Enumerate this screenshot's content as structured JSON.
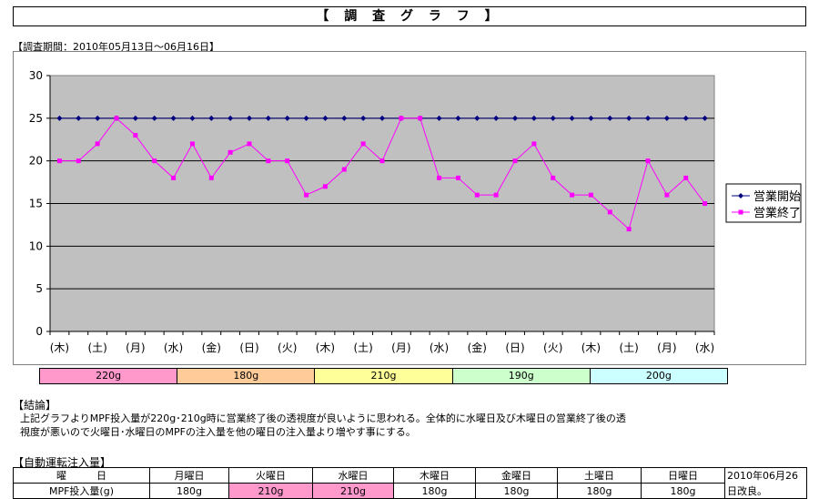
{
  "title": "【 調 査 グ ラ フ 】",
  "period": "【調査期間：2010年05月13日～06月16日】",
  "chart_data": {
    "type": "line",
    "categories": [
      "(木)",
      "(金)",
      "(土)",
      "(日)",
      "(月)",
      "(火)",
      "(水)",
      "(木)",
      "(金)",
      "(土)",
      "(日)",
      "(月)",
      "(火)",
      "(水)",
      "(木)",
      "(金)",
      "(土)",
      "(日)",
      "(月)",
      "(火)",
      "(水)",
      "(木)",
      "(金)",
      "(土)",
      "(日)",
      "(月)",
      "(火)",
      "(水)",
      "(木)",
      "(金)",
      "(土)",
      "(日)",
      "(月)",
      "(火)",
      "(水)"
    ],
    "x_tick_labels": [
      "(木)",
      "(土)",
      "(月)",
      "(水)",
      "(金)",
      "(日)",
      "(火)",
      "(木)",
      "(土)",
      "(月)",
      "(水)",
      "(金)",
      "(日)",
      "(火)",
      "(木)",
      "(土)",
      "(月)",
      "(水)"
    ],
    "series": [
      {
        "name": "営業開始",
        "color": "#000080",
        "marker": "diamond",
        "values": [
          25,
          25,
          25,
          25,
          25,
          25,
          25,
          25,
          25,
          25,
          25,
          25,
          25,
          25,
          25,
          25,
          25,
          25,
          25,
          25,
          25,
          25,
          25,
          25,
          25,
          25,
          25,
          25,
          25,
          25,
          25,
          25,
          25,
          25,
          25
        ]
      },
      {
        "name": "営業終了",
        "color": "#ff00ff",
        "marker": "square",
        "values": [
          20,
          20,
          22,
          25,
          23,
          20,
          18,
          22,
          18,
          21,
          22,
          20,
          20,
          16,
          17,
          19,
          22,
          20,
          25,
          25,
          18,
          18,
          16,
          16,
          20,
          22,
          18,
          16,
          16,
          14,
          12,
          20,
          16,
          18,
          15
        ]
      }
    ],
    "ylim": [
      0,
      30
    ],
    "yticks": [
      0,
      5,
      10,
      15,
      20,
      25,
      30
    ],
    "grid": true,
    "plot_background": "#c0c0c0",
    "legend_position": "right"
  },
  "amount_band": [
    {
      "label": "220g",
      "color": "#ff99cc"
    },
    {
      "label": "180g",
      "color": "#ffcc99"
    },
    {
      "label": "210g",
      "color": "#ffff99"
    },
    {
      "label": "190g",
      "color": "#ccffcc"
    },
    {
      "label": "200g",
      "color": "#ccffff"
    }
  ],
  "conclusion": {
    "heading": "【結論】",
    "line1": "上記グラフよりMPF投入量が220g･210g時に営業終了後の透視度が良いように思われる。全体的に水曜日及び木曜日の営業終了後の透",
    "line2": "視度が悪いので火曜日･水曜日のMPFの注入量を他の曜日の注入量より増やす事にする。"
  },
  "auto_injection": {
    "heading": "【自動運転注入量】",
    "header_label": "曜　　　日",
    "row_label": "MPF投入量(g)",
    "days": [
      "月曜日",
      "火曜日",
      "水曜日",
      "木曜日",
      "金曜日",
      "土曜日",
      "日曜日"
    ],
    "amounts": [
      "180g",
      "210g",
      "210g",
      "180g",
      "180g",
      "180g",
      "180g"
    ],
    "highlight_color": "#ff99cc",
    "note_line1": "2010年06月26",
    "note_line2": "日改良。"
  }
}
